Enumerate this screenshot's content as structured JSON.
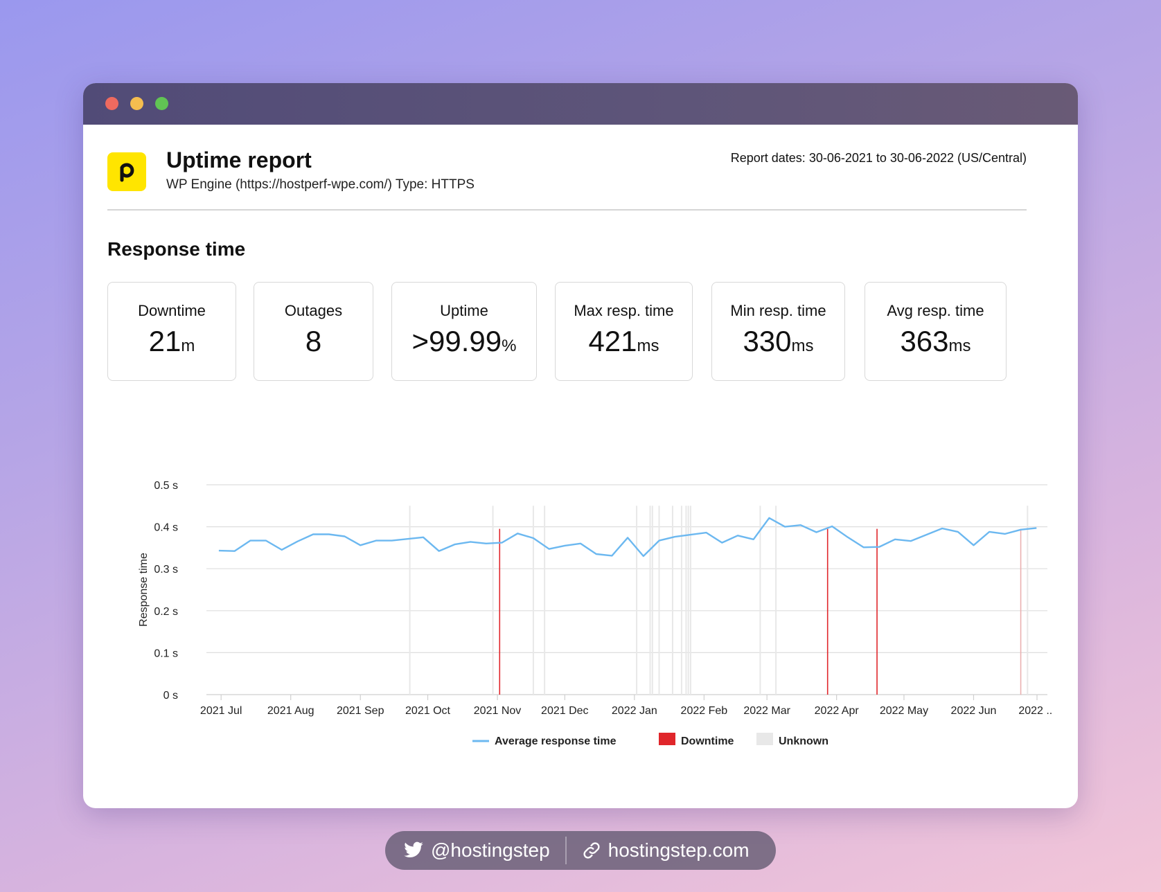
{
  "header": {
    "title": "Uptime report",
    "subtitle": "WP Engine (https://hostperf-wpe.com/) Type: HTTPS",
    "report_dates": "Report dates: 30-06-2021 to 30-06-2022 (US/Central)",
    "logo_icon": "pingdom-p-logo",
    "logo_color": "#ffe500"
  },
  "section_title": "Response time",
  "stats": [
    {
      "label": "Downtime",
      "value": "21",
      "unit": "m"
    },
    {
      "label": "Outages",
      "value": "8",
      "unit": ""
    },
    {
      "label": "Uptime",
      "value": ">99.99",
      "unit": "%"
    },
    {
      "label": "Max resp. time",
      "value": "421",
      "unit": "ms"
    },
    {
      "label": "Min resp. time",
      "value": "330",
      "unit": "ms"
    },
    {
      "label": "Avg resp. time",
      "value": "363",
      "unit": "ms"
    }
  ],
  "chart_data": {
    "type": "line",
    "ylabel": "Response time",
    "ylim": [
      0,
      0.5
    ],
    "y_ticks": [
      "0 s",
      "0.1 s",
      "0.2 s",
      "0.3 s",
      "0.4 s",
      "0.5 s"
    ],
    "x_ticks": [
      "2021 Jul",
      "2021 Aug",
      "2021 Sep",
      "2021 Oct",
      "2021 Nov",
      "2021 Dec",
      "2022 Jan",
      "2022 Feb",
      "2022 Mar",
      "2022 Apr",
      "2022 May",
      "2022 Jun",
      "2022 ..."
    ],
    "grid": true,
    "legend_position": "bottom",
    "series": [
      {
        "name": "Average response time",
        "color": "#6cb8f0",
        "x": [
          "2021-06-30",
          "2021-07-07",
          "2021-07-14",
          "2021-07-21",
          "2021-07-28",
          "2021-08-04",
          "2021-08-11",
          "2021-08-18",
          "2021-08-25",
          "2021-09-01",
          "2021-09-08",
          "2021-09-15",
          "2021-09-22",
          "2021-09-29",
          "2021-10-06",
          "2021-10-13",
          "2021-10-20",
          "2021-10-27",
          "2021-11-03",
          "2021-11-10",
          "2021-11-17",
          "2021-11-24",
          "2021-12-01",
          "2021-12-08",
          "2021-12-15",
          "2021-12-22",
          "2021-12-29",
          "2022-01-05",
          "2022-01-12",
          "2022-01-19",
          "2022-01-26",
          "2022-02-02",
          "2022-02-09",
          "2022-02-16",
          "2022-02-23",
          "2022-03-02",
          "2022-03-09",
          "2022-03-16",
          "2022-03-23",
          "2022-03-30",
          "2022-04-06",
          "2022-04-13",
          "2022-04-20",
          "2022-04-27",
          "2022-05-04",
          "2022-05-11",
          "2022-05-18",
          "2022-05-25",
          "2022-06-01",
          "2022-06-08",
          "2022-06-15",
          "2022-06-22",
          "2022-06-29"
        ],
        "values": [
          0.343,
          0.342,
          0.367,
          0.367,
          0.345,
          0.365,
          0.382,
          0.382,
          0.377,
          0.356,
          0.367,
          0.367,
          0.371,
          0.375,
          0.342,
          0.358,
          0.364,
          0.36,
          0.362,
          0.384,
          0.373,
          0.347,
          0.355,
          0.36,
          0.335,
          0.331,
          0.374,
          0.33,
          0.367,
          0.376,
          0.381,
          0.386,
          0.362,
          0.379,
          0.37,
          0.421,
          0.4,
          0.404,
          0.387,
          0.401,
          0.375,
          0.351,
          0.352,
          0.37,
          0.366,
          0.381,
          0.396,
          0.388,
          0.356,
          0.388,
          0.383,
          0.393,
          0.397
        ]
      }
    ],
    "downtime_dates": [
      "2021-11-02",
      "2022-03-28",
      "2022-04-19"
    ],
    "downtime_faint_dates": [
      "2022-06-22"
    ],
    "downtime_color": "#e0262b",
    "unknown_dates": [
      "2021-09-23",
      "2021-10-30",
      "2021-11-17",
      "2021-11-22",
      "2022-01-02",
      "2022-01-08",
      "2022-01-09",
      "2022-01-12",
      "2022-01-18",
      "2022-01-22",
      "2022-01-24",
      "2022-01-25",
      "2022-01-26",
      "2022-02-26",
      "2022-03-05",
      "2022-06-25"
    ],
    "unknown_color": "#e8e8e8",
    "legend": [
      "Average response time",
      "Downtime",
      "Unknown"
    ]
  },
  "footer": {
    "twitter_handle": "@hostingstep",
    "website": "hostingstep.com",
    "twitter_icon": "twitter-icon",
    "link_icon": "link-icon"
  }
}
